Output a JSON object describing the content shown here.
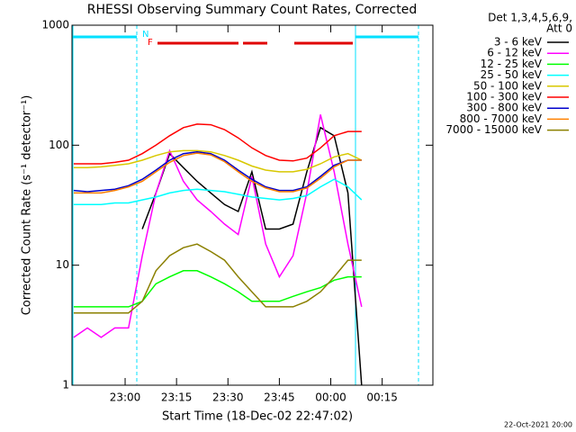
{
  "chart_data": {
    "type": "line",
    "title": "RHESSI Observing Summary Count Rates, Corrected",
    "x_label": "Start Time (18-Dec-02 22:47:02)",
    "y_label": "Corrected Count Rate (s⁻¹ detector⁻¹)",
    "legend_header": [
      "Det 1,3,4,5,6,9,",
      "Att 0"
    ],
    "legend_position": "right",
    "footer": "22-Oct-2021 20:00",
    "flag_labels": [
      {
        "text": "N",
        "color": "#00e0ff"
      },
      {
        "text": "F",
        "color": "#ff0000"
      }
    ],
    "log_y": true,
    "xlim": [
      44.5,
      149.8
    ],
    "ylim": [
      1,
      1000
    ],
    "xticks": [
      {
        "value": 60,
        "label": "23:00"
      },
      {
        "value": 75,
        "label": "23:15"
      },
      {
        "value": 90,
        "label": "23:30"
      },
      {
        "value": 105,
        "label": "23:45"
      },
      {
        "value": 120,
        "label": "00:00"
      },
      {
        "value": 135,
        "label": "00:15"
      }
    ],
    "yticks": [
      1,
      10,
      100,
      1000
    ],
    "x": [
      45,
      49,
      53,
      57,
      61,
      65,
      69,
      73,
      77,
      81,
      85,
      89,
      93,
      97,
      101,
      105,
      109,
      113,
      117,
      121,
      125,
      129
    ],
    "series": [
      {
        "name": "3 - 6 keV",
        "color": "#000000",
        "values": [
          null,
          null,
          null,
          null,
          null,
          20,
          40,
          85,
          65,
          50,
          40,
          32,
          28,
          60,
          20,
          20,
          22,
          60,
          140,
          120,
          40,
          1
        ]
      },
      {
        "name": "6 - 12 keV",
        "color": "#ff00ff",
        "values": [
          2.5,
          3,
          2.5,
          3,
          3,
          12,
          40,
          90,
          50,
          35,
          28,
          22,
          18,
          55,
          15,
          8,
          12,
          40,
          180,
          60,
          15,
          4.5
        ]
      },
      {
        "name": "12 - 25 keV",
        "color": "#00ff00",
        "values": [
          4.5,
          4.5,
          4.5,
          4.5,
          4.5,
          5,
          7,
          8,
          9,
          9,
          8,
          7,
          6,
          5,
          5,
          5,
          5.5,
          6,
          6.5,
          7.5,
          8,
          8
        ]
      },
      {
        "name": "25 - 50 keV",
        "color": "#00ffff",
        "values": [
          32,
          32,
          32,
          33,
          33,
          35,
          37,
          40,
          42,
          43,
          42,
          41,
          39,
          37,
          36,
          35,
          36,
          38,
          45,
          52,
          45,
          35
        ]
      },
      {
        "name": "50 - 100 keV",
        "color": "#d8c800",
        "values": [
          65,
          65,
          66,
          68,
          70,
          75,
          82,
          88,
          90,
          90,
          88,
          82,
          75,
          67,
          62,
          60,
          60,
          63,
          70,
          80,
          85,
          75
        ]
      },
      {
        "name": "100 - 300 keV",
        "color": "#ff0000",
        "values": [
          70,
          70,
          70,
          72,
          75,
          85,
          100,
          120,
          140,
          150,
          148,
          135,
          115,
          95,
          82,
          75,
          74,
          78,
          95,
          120,
          130,
          130
        ]
      },
      {
        "name": "300 - 800 keV",
        "color": "#0000cc",
        "values": [
          42,
          41,
          42,
          43,
          46,
          52,
          62,
          75,
          85,
          88,
          85,
          75,
          62,
          52,
          45,
          42,
          42,
          45,
          55,
          68,
          75,
          75
        ]
      },
      {
        "name": "800 - 7000 keV",
        "color": "#ff8000",
        "values": [
          40,
          40,
          40,
          42,
          45,
          50,
          60,
          72,
          82,
          86,
          83,
          73,
          60,
          50,
          44,
          41,
          41,
          44,
          53,
          66,
          75,
          75
        ]
      },
      {
        "name": "7000 - 15000 keV",
        "color": "#8b8000",
        "values": [
          4,
          4,
          4,
          4,
          4,
          5,
          9,
          12,
          14,
          15,
          13,
          11,
          8,
          6,
          4.5,
          4.5,
          4.5,
          5,
          6,
          8,
          11,
          11
        ]
      }
    ]
  }
}
